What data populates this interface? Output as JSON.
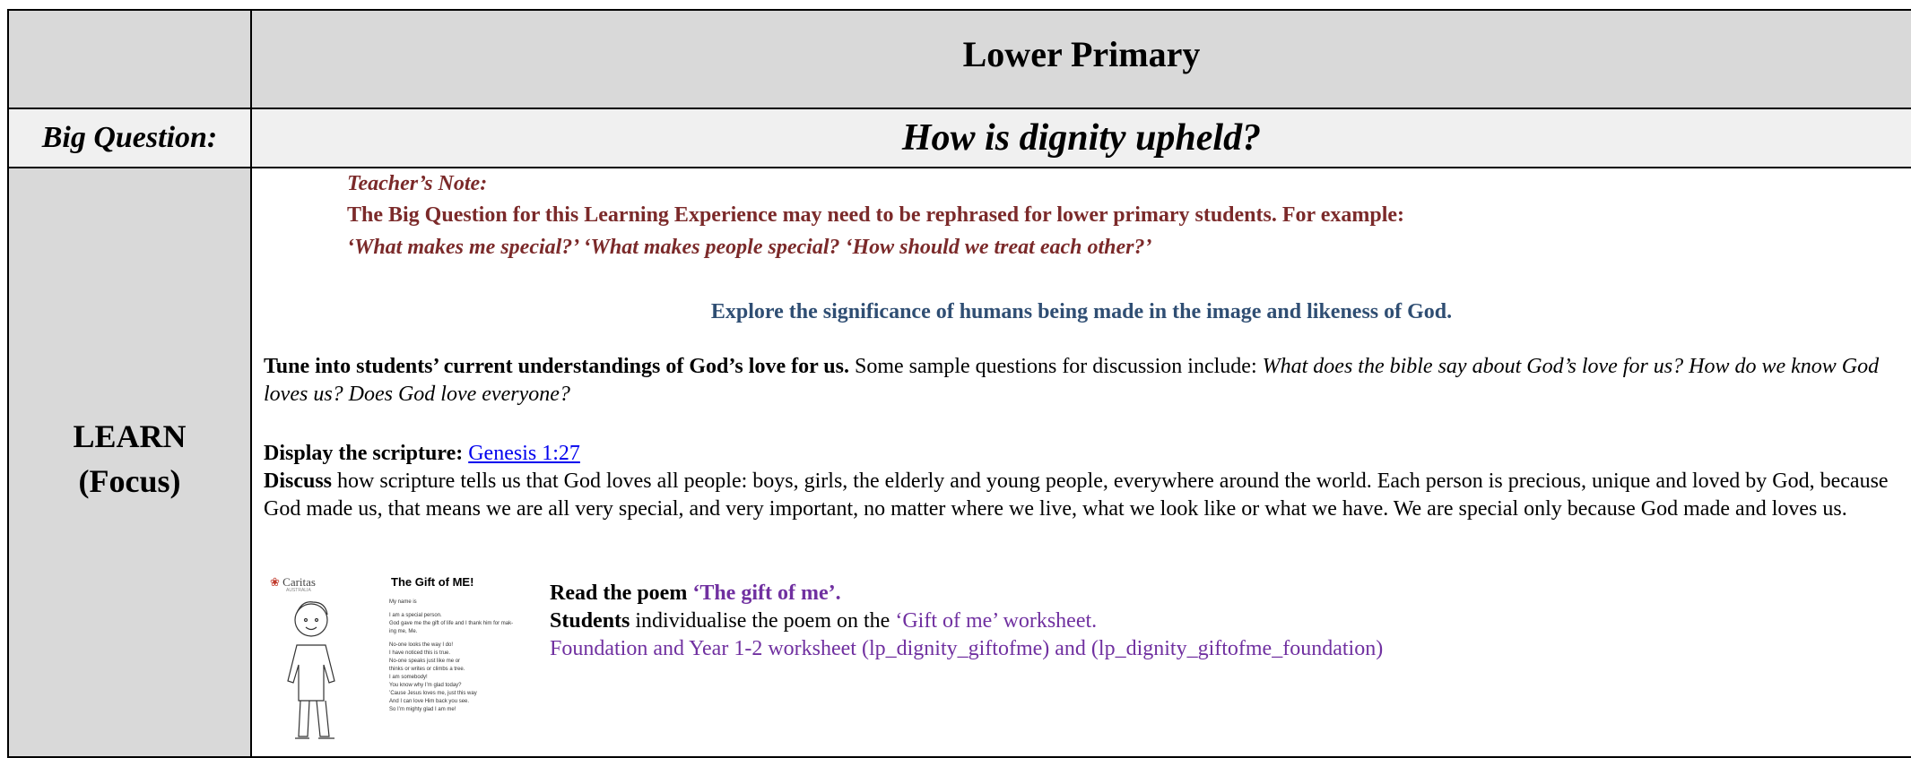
{
  "header": {
    "title": "Lower Primary"
  },
  "big_question": {
    "label": "Big Question:",
    "text": "How is dignity upheld?"
  },
  "learn": {
    "label": [
      "LEARN",
      "(Focus)"
    ],
    "teacher_note": {
      "heading": "Teacher’s Note:",
      "line1": "The Big Question for this Learning Experience may need to be rephrased for lower primary students.  For example:",
      "line2": "‘What makes me special?’  ‘What makes people special?  ‘How should we treat each other?’"
    },
    "explore": "Explore the significance of humans being made in the image and likeness of God.",
    "tune": {
      "bold": "Tune into students’ current understandings of God’s love for us.",
      "text": "Some sample questions for discussion include:",
      "italic": "What does the bible say about God’s love for us? How do we know God loves us? Does God love everyone?"
    },
    "display": {
      "bold": "Display the scripture:",
      "link": "Genesis 1:27"
    },
    "discuss": {
      "bold": "Discuss",
      "text": "how scripture tells us that God loves all people: boys, girls, the elderly and young people, everywhere around the world. Each person is precious, unique and loved by God, because God made us, that means we are all very special, and very important, no matter where we live, what we look like or what we have. We are special only because God made and loves us."
    },
    "poem": {
      "read_bold": "Read the poem",
      "read_title": "‘The gift of me’.",
      "students_bold": "Students",
      "students_text": "individualise the poem on the",
      "worksheet": "‘Gift of me’ worksheet.",
      "files": "Foundation and Year 1-2 worksheet (lp_dignity_giftofme) and (lp_dignity_giftofme_foundation)"
    },
    "thumbnail": {
      "brand": "Caritas",
      "brand_sub": "AUSTRALIA",
      "title": "The Gift of ME!",
      "lines": [
        "My name is",
        "I am a special person.",
        "God gave me the gift of life and I thank him for mak-",
        "ing me, Me.",
        "No-one looks the way I do!",
        "I have noticed this is true.",
        "No-one speaks just like me or",
        "thinks or writes or climbs a tree.",
        "I am somebody!",
        "You know why I’m glad today?",
        "’Cause Jesus loves me, just this way",
        "And I can love Him back you see.",
        "So I’m mighty glad I am me!"
      ]
    }
  }
}
